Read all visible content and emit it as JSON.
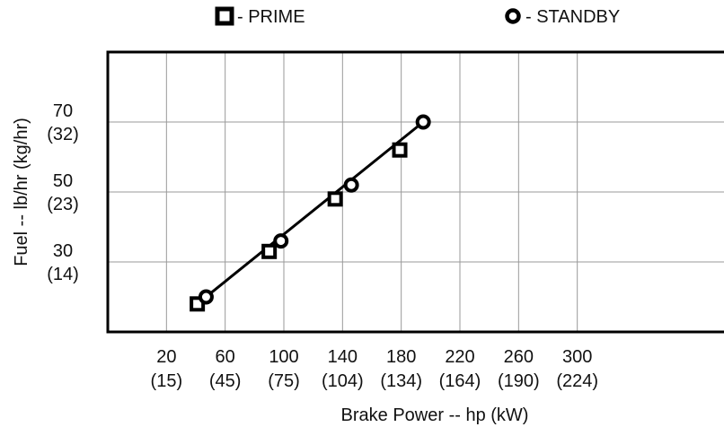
{
  "chart_data": {
    "type": "scatter",
    "title": "",
    "xlabel": "Brake Power -- hp (kW)",
    "ylabel": "Fuel -- lb/hr (kg/hr)",
    "xlim": [
      -20,
      400
    ],
    "ylim": [
      10,
      90
    ],
    "grid": true,
    "legend_position": "top",
    "x_ticks": [
      {
        "value": 20,
        "label": "20",
        "sub": "(15)"
      },
      {
        "value": 60,
        "label": "60",
        "sub": "(45)"
      },
      {
        "value": 100,
        "label": "100",
        "sub": "(75)"
      },
      {
        "value": 140,
        "label": "140",
        "sub": "(104)"
      },
      {
        "value": 180,
        "label": "180",
        "sub": "(134)"
      },
      {
        "value": 220,
        "label": "220",
        "sub": "(164)"
      },
      {
        "value": 260,
        "label": "260",
        "sub": "(190)"
      },
      {
        "value": 300,
        "label": "300",
        "sub": "(224)"
      }
    ],
    "y_ticks": [
      {
        "value": 30,
        "label": "30",
        "sub": "(14)"
      },
      {
        "value": 50,
        "label": "50",
        "sub": "(23)"
      },
      {
        "value": 70,
        "label": "70",
        "sub": "(32)"
      }
    ],
    "series": [
      {
        "name": "- PRIME",
        "marker": "square",
        "color": "#000000",
        "points": [
          {
            "x": 41,
            "y": 18
          },
          {
            "x": 90,
            "y": 33
          },
          {
            "x": 135,
            "y": 48
          },
          {
            "x": 179,
            "y": 62
          }
        ]
      },
      {
        "name": "- STANDBY",
        "marker": "circle",
        "color": "#000000",
        "points": [
          {
            "x": 47,
            "y": 20
          },
          {
            "x": 98,
            "y": 36
          },
          {
            "x": 146,
            "y": 52
          },
          {
            "x": 195,
            "y": 70
          }
        ]
      }
    ]
  }
}
